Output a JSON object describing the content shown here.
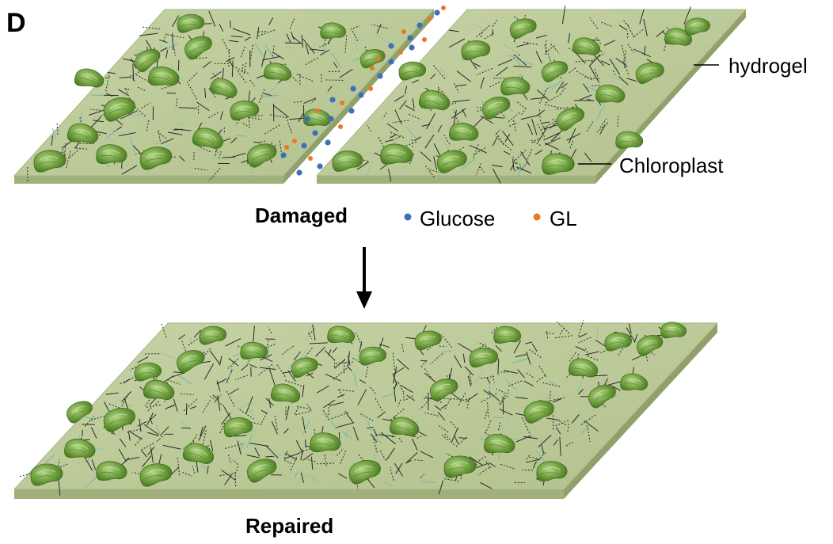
{
  "panel_label": "D",
  "labels": {
    "hydrogel": "hydrogel",
    "chloroplast": "Chloroplast",
    "damaged": "Damaged",
    "repaired": "Repaired"
  },
  "legend": [
    {
      "name": "Glucose",
      "color": "#3f6fb8"
    },
    {
      "name": "GL",
      "color": "#e8792b"
    }
  ],
  "colors": {
    "slab_top": "#bcc99a",
    "slab_side": "#9fb07a",
    "chloroplast": "#6c9c3c",
    "chloroplast_dark": "#3f6a1e",
    "bond_line": "#2a2a2a"
  }
}
